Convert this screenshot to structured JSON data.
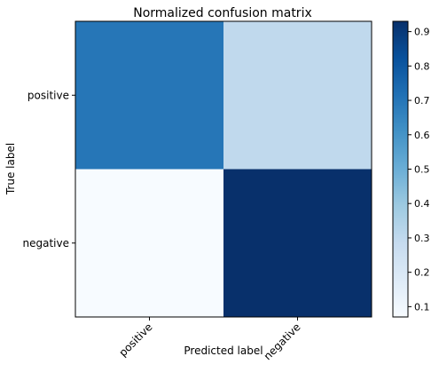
{
  "chart_data": {
    "type": "heatmap",
    "title": "Normalized confusion matrix",
    "xlabel": "Predicted label",
    "ylabel": "True label",
    "x_categories": [
      "positive",
      "negative"
    ],
    "y_categories": [
      "positive",
      "negative"
    ],
    "values": [
      [
        0.7,
        0.3
      ],
      [
        0.07,
        0.93
      ]
    ],
    "colormap": "Blues",
    "color_range": [
      0.07,
      0.93
    ],
    "colorbar_ticks": [
      0.1,
      0.2,
      0.3,
      0.4,
      0.5,
      0.6,
      0.7,
      0.8,
      0.9
    ],
    "grid": false,
    "legend": "colorbar-right"
  }
}
